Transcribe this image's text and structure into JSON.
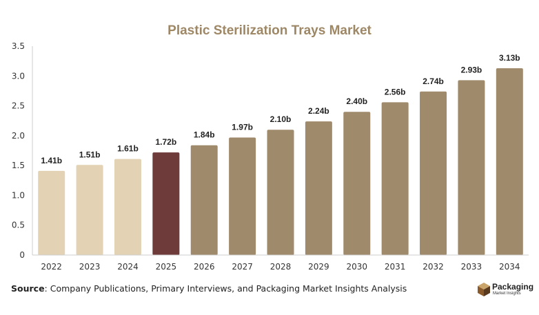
{
  "chart_data": {
    "type": "bar",
    "title": "Plastic Sterilization Trays Market",
    "categories": [
      "2022",
      "2023",
      "2024",
      "2025",
      "2026",
      "2027",
      "2028",
      "2029",
      "2030",
      "2031",
      "2032",
      "2033",
      "2034"
    ],
    "values": [
      1.41,
      1.51,
      1.61,
      1.72,
      1.84,
      1.97,
      2.1,
      2.24,
      2.4,
      2.56,
      2.74,
      2.93,
      3.13
    ],
    "data_labels": [
      "1.41b",
      "1.51b",
      "1.61b",
      "1.72b",
      "1.84b",
      "1.97b",
      "2.10b",
      "2.24b",
      "2.40b",
      "2.56b",
      "2.74b",
      "2.93b",
      "3.13b"
    ],
    "yticks": [
      "0",
      "0.5",
      "1.0",
      "1.5",
      "2.0",
      "2.5",
      "3.0",
      "3.5"
    ],
    "ylim": [
      0,
      3.5
    ],
    "xlabel": "",
    "ylabel": "",
    "grid": false,
    "bar_groups": [
      "historical",
      "historical",
      "historical",
      "base",
      "forecast",
      "forecast",
      "forecast",
      "forecast",
      "forecast",
      "forecast",
      "forecast",
      "forecast",
      "forecast"
    ],
    "colors": {
      "title": "#9e8765",
      "historical": "#e3d3b4",
      "base": "#6f3a3a",
      "forecast": "#a08a6c",
      "axis": "#cccccc",
      "tick_text": "#333333",
      "label_text": "#222222"
    }
  },
  "footer": {
    "source_label": "Source",
    "source_text": ": Company Publications, Primary Interviews, and Packaging Market Insights Analysis"
  },
  "logo": {
    "name": "Packaging",
    "tagline": "Market Insights"
  }
}
